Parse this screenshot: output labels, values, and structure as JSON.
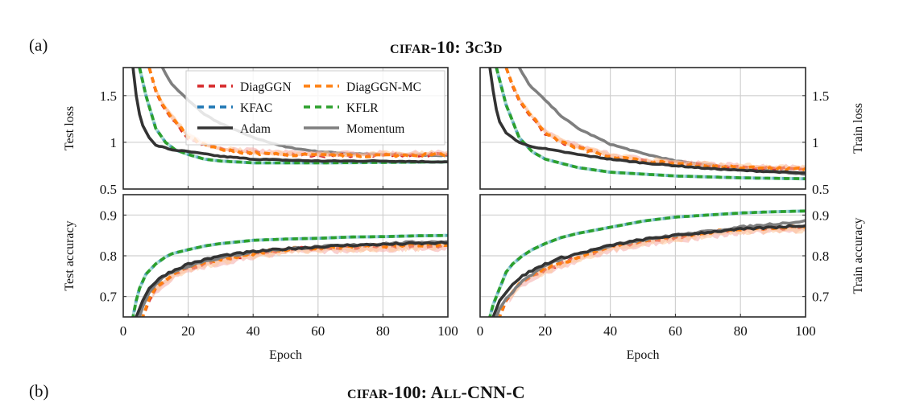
{
  "figure": {
    "panel_a_label": "(a)",
    "panel_b_label": "(b)",
    "title_a": {
      "prefix_sc": "cifar",
      "mid": "-10: 3",
      "c_sc": "c",
      "mid2": "3",
      "d_sc": "d"
    },
    "title_b": {
      "prefix_sc": "cifar",
      "mid": "-100: A",
      "ll_sc": "ll",
      "rest": "-CNN-C"
    }
  },
  "legend": {
    "placement": "top-left panel, upper-right",
    "entries": [
      {
        "name": "DiagGGN",
        "color": "#d62728",
        "style": "dashed"
      },
      {
        "name": "DiagGGN-MC",
        "color": "#ff7f0e",
        "style": "dashed"
      },
      {
        "name": "KFAC",
        "color": "#1f77b4",
        "style": "dashed"
      },
      {
        "name": "KFLR",
        "color": "#2ca02c",
        "style": "dashed"
      },
      {
        "name": "Adam",
        "color": "#333333",
        "style": "solid"
      },
      {
        "name": "Momentum",
        "color": "#7f7f7f",
        "style": "solid"
      }
    ]
  },
  "chart_data": [
    {
      "id": "test-loss",
      "type": "line",
      "title": "",
      "xlabel": "",
      "ylabel": "Test loss",
      "ylabel_side": "left",
      "xlim": [
        0,
        100
      ],
      "ylim": [
        0.5,
        1.8
      ],
      "xticks": [
        0,
        20,
        40,
        60,
        80,
        100
      ],
      "show_xtick_labels": false,
      "yticks": [
        0.5,
        1,
        1.5
      ],
      "ytick_labels": [
        "0.5",
        "1",
        "1.5"
      ],
      "grid": true,
      "series": [
        {
          "name": "Momentum",
          "x": [
            12,
            15,
            20,
            25,
            30,
            40,
            50,
            60,
            70,
            80,
            90,
            100
          ],
          "y": [
            1.8,
            1.62,
            1.45,
            1.3,
            1.2,
            1.05,
            0.95,
            0.9,
            0.88,
            0.87,
            0.865,
            0.86
          ]
        },
        {
          "name": "DiagGGN",
          "x": [
            8,
            10,
            12,
            15,
            20,
            25,
            30,
            40,
            50,
            60,
            70,
            80,
            90,
            100
          ],
          "y": [
            1.8,
            1.55,
            1.4,
            1.25,
            1.05,
            0.97,
            0.92,
            0.89,
            0.87,
            0.86,
            0.86,
            0.865,
            0.865,
            0.87
          ]
        },
        {
          "name": "DiagGGN-MC",
          "x": [
            8,
            10,
            12,
            15,
            20,
            25,
            30,
            40,
            50,
            60,
            70,
            80,
            90,
            100
          ],
          "y": [
            1.8,
            1.56,
            1.41,
            1.26,
            1.06,
            0.97,
            0.92,
            0.88,
            0.865,
            0.86,
            0.855,
            0.86,
            0.865,
            0.87
          ]
        },
        {
          "name": "KFAC",
          "x": [
            5,
            7,
            10,
            13,
            16,
            20,
            25,
            30,
            40,
            50,
            60,
            80,
            100
          ],
          "y": [
            1.8,
            1.5,
            1.15,
            1.0,
            0.92,
            0.87,
            0.82,
            0.8,
            0.78,
            0.78,
            0.78,
            0.785,
            0.79
          ]
        },
        {
          "name": "KFLR",
          "x": [
            5,
            7,
            10,
            13,
            16,
            20,
            25,
            30,
            40,
            50,
            60,
            80,
            100
          ],
          "y": [
            1.8,
            1.5,
            1.15,
            1.0,
            0.92,
            0.87,
            0.82,
            0.8,
            0.78,
            0.78,
            0.78,
            0.785,
            0.79
          ]
        },
        {
          "name": "Adam",
          "x": [
            3,
            4,
            5,
            6,
            8,
            10,
            15,
            20,
            30,
            40,
            50,
            60,
            80,
            100
          ],
          "y": [
            1.8,
            1.5,
            1.3,
            1.18,
            1.05,
            0.97,
            0.92,
            0.9,
            0.85,
            0.82,
            0.81,
            0.8,
            0.8,
            0.79
          ]
        }
      ]
    },
    {
      "id": "train-loss",
      "type": "line",
      "title": "",
      "xlabel": "",
      "ylabel": "Train loss",
      "ylabel_side": "right",
      "xlim": [
        0,
        100
      ],
      "ylim": [
        0.5,
        1.8
      ],
      "xticks": [
        0,
        20,
        40,
        60,
        80,
        100
      ],
      "show_xtick_labels": false,
      "yticks": [
        0.5,
        1,
        1.5
      ],
      "ytick_labels": [
        "0.5",
        "1",
        "1.5"
      ],
      "grid": true,
      "series": [
        {
          "name": "Momentum",
          "x": [
            12,
            15,
            20,
            25,
            30,
            40,
            50,
            60,
            70,
            80,
            90,
            100
          ],
          "y": [
            1.8,
            1.62,
            1.45,
            1.28,
            1.15,
            0.98,
            0.88,
            0.8,
            0.76,
            0.72,
            0.69,
            0.66
          ]
        },
        {
          "name": "DiagGGN",
          "x": [
            8,
            10,
            12,
            15,
            20,
            25,
            30,
            40,
            50,
            60,
            70,
            80,
            90,
            100
          ],
          "y": [
            1.8,
            1.6,
            1.45,
            1.3,
            1.1,
            1.0,
            0.95,
            0.85,
            0.8,
            0.77,
            0.75,
            0.73,
            0.72,
            0.72
          ]
        },
        {
          "name": "DiagGGN-MC",
          "x": [
            8,
            10,
            12,
            15,
            20,
            25,
            30,
            40,
            50,
            60,
            70,
            80,
            90,
            100
          ],
          "y": [
            1.8,
            1.61,
            1.46,
            1.31,
            1.11,
            1.0,
            0.94,
            0.85,
            0.8,
            0.77,
            0.75,
            0.73,
            0.72,
            0.71
          ]
        },
        {
          "name": "KFAC",
          "x": [
            5,
            8,
            12,
            16,
            20,
            30,
            40,
            50,
            60,
            70,
            80,
            90,
            100
          ],
          "y": [
            1.8,
            1.4,
            1.05,
            0.9,
            0.82,
            0.73,
            0.68,
            0.66,
            0.64,
            0.63,
            0.62,
            0.615,
            0.61
          ]
        },
        {
          "name": "KFLR",
          "x": [
            5,
            8,
            12,
            16,
            20,
            30,
            40,
            50,
            60,
            70,
            80,
            90,
            100
          ],
          "y": [
            1.8,
            1.4,
            1.05,
            0.9,
            0.82,
            0.73,
            0.68,
            0.66,
            0.64,
            0.63,
            0.62,
            0.615,
            0.61
          ]
        },
        {
          "name": "Adam",
          "x": [
            3,
            4,
            5,
            6,
            8,
            12,
            15,
            20,
            30,
            40,
            50,
            60,
            70,
            80,
            90,
            100
          ],
          "y": [
            1.8,
            1.55,
            1.35,
            1.22,
            1.1,
            1.0,
            0.96,
            0.93,
            0.87,
            0.82,
            0.78,
            0.75,
            0.72,
            0.7,
            0.685,
            0.67
          ]
        }
      ]
    },
    {
      "id": "test-accuracy",
      "type": "line",
      "title": "",
      "xlabel": "Epoch",
      "ylabel": "Test accuracy",
      "ylabel_side": "left",
      "xlim": [
        0,
        100
      ],
      "ylim": [
        0.65,
        0.95
      ],
      "xticks": [
        0,
        20,
        40,
        60,
        80,
        100
      ],
      "show_xtick_labels": true,
      "xtick_labels": [
        "0",
        "20",
        "40",
        "60",
        "80",
        "100"
      ],
      "yticks": [
        0.7,
        0.8,
        0.9
      ],
      "ytick_labels": [
        "0.7",
        "0.8",
        "0.9"
      ],
      "grid": true,
      "series": [
        {
          "name": "DiagGGN",
          "x": [
            6,
            8,
            10,
            15,
            20,
            30,
            40,
            50,
            60,
            70,
            80,
            90,
            100
          ],
          "y": [
            0.65,
            0.69,
            0.72,
            0.75,
            0.77,
            0.79,
            0.805,
            0.815,
            0.82,
            0.82,
            0.823,
            0.824,
            0.825
          ]
        },
        {
          "name": "DiagGGN-MC",
          "x": [
            6,
            8,
            10,
            15,
            20,
            30,
            40,
            50,
            60,
            70,
            80,
            90,
            100
          ],
          "y": [
            0.65,
            0.695,
            0.722,
            0.752,
            0.772,
            0.792,
            0.806,
            0.816,
            0.821,
            0.822,
            0.825,
            0.826,
            0.828
          ]
        },
        {
          "name": "KFAC",
          "x": [
            3,
            4,
            5,
            7,
            10,
            13,
            15,
            20,
            25,
            30,
            40,
            50,
            60,
            70,
            80,
            90,
            100
          ],
          "y": [
            0.65,
            0.69,
            0.72,
            0.755,
            0.78,
            0.797,
            0.805,
            0.815,
            0.824,
            0.83,
            0.838,
            0.841,
            0.843,
            0.846,
            0.847,
            0.849,
            0.85
          ]
        },
        {
          "name": "KFLR",
          "x": [
            3,
            4,
            5,
            7,
            10,
            13,
            15,
            20,
            25,
            30,
            40,
            50,
            60,
            70,
            80,
            90,
            100
          ],
          "y": [
            0.65,
            0.69,
            0.72,
            0.755,
            0.78,
            0.797,
            0.805,
            0.815,
            0.824,
            0.83,
            0.838,
            0.841,
            0.843,
            0.846,
            0.847,
            0.849,
            0.85
          ]
        },
        {
          "name": "Momentum",
          "x": [
            5,
            6,
            8,
            10,
            12,
            15,
            20,
            25,
            30,
            40,
            50,
            60,
            70,
            80,
            90,
            100
          ],
          "y": [
            0.65,
            0.675,
            0.71,
            0.73,
            0.745,
            0.76,
            0.775,
            0.787,
            0.795,
            0.81,
            0.817,
            0.822,
            0.826,
            0.83,
            0.833,
            0.835
          ]
        },
        {
          "name": "Adam",
          "x": [
            4,
            5,
            6,
            8,
            10,
            12,
            15,
            20,
            25,
            30,
            40,
            50,
            60,
            70,
            80,
            90,
            100
          ],
          "y": [
            0.65,
            0.67,
            0.69,
            0.72,
            0.735,
            0.75,
            0.762,
            0.78,
            0.79,
            0.8,
            0.81,
            0.817,
            0.822,
            0.826,
            0.828,
            0.83,
            0.832
          ]
        }
      ]
    },
    {
      "id": "train-accuracy",
      "type": "line",
      "title": "",
      "xlabel": "Epoch",
      "ylabel": "Train accuracy",
      "ylabel_side": "right",
      "xlim": [
        0,
        100
      ],
      "ylim": [
        0.65,
        0.95
      ],
      "xticks": [
        0,
        20,
        40,
        60,
        80,
        100
      ],
      "show_xtick_labels": true,
      "xtick_labels": [
        "0",
        "20",
        "40",
        "60",
        "80",
        "100"
      ],
      "yticks": [
        0.7,
        0.8,
        0.9
      ],
      "ytick_labels": [
        "0.7",
        "0.8",
        "0.9"
      ],
      "grid": true,
      "series": [
        {
          "name": "DiagGGN",
          "x": [
            6,
            8,
            10,
            12,
            15,
            20,
            30,
            40,
            50,
            60,
            70,
            80,
            90,
            100
          ],
          "y": [
            0.65,
            0.69,
            0.71,
            0.73,
            0.745,
            0.765,
            0.795,
            0.82,
            0.835,
            0.845,
            0.855,
            0.865,
            0.868,
            0.87
          ]
        },
        {
          "name": "DiagGGN-MC",
          "x": [
            6,
            8,
            10,
            12,
            15,
            20,
            30,
            40,
            50,
            60,
            70,
            80,
            90,
            100
          ],
          "y": [
            0.65,
            0.692,
            0.712,
            0.732,
            0.748,
            0.768,
            0.797,
            0.822,
            0.837,
            0.847,
            0.857,
            0.866,
            0.869,
            0.871
          ]
        },
        {
          "name": "KFAC",
          "x": [
            3,
            4,
            6,
            8,
            10,
            13,
            16,
            20,
            25,
            30,
            40,
            50,
            60,
            70,
            80,
            90,
            100
          ],
          "y": [
            0.65,
            0.68,
            0.72,
            0.76,
            0.78,
            0.8,
            0.815,
            0.83,
            0.845,
            0.855,
            0.87,
            0.885,
            0.895,
            0.9,
            0.905,
            0.908,
            0.91
          ]
        },
        {
          "name": "KFLR",
          "x": [
            3,
            4,
            6,
            8,
            10,
            13,
            16,
            20,
            25,
            30,
            40,
            50,
            60,
            70,
            80,
            90,
            100
          ],
          "y": [
            0.65,
            0.68,
            0.72,
            0.76,
            0.78,
            0.8,
            0.815,
            0.83,
            0.845,
            0.855,
            0.87,
            0.885,
            0.895,
            0.9,
            0.905,
            0.908,
            0.91
          ]
        },
        {
          "name": "Momentum",
          "x": [
            5,
            6,
            8,
            10,
            12,
            15,
            20,
            25,
            30,
            40,
            50,
            60,
            70,
            80,
            90,
            100
          ],
          "y": [
            0.65,
            0.67,
            0.695,
            0.71,
            0.73,
            0.75,
            0.775,
            0.793,
            0.805,
            0.825,
            0.84,
            0.85,
            0.86,
            0.87,
            0.878,
            0.885
          ]
        },
        {
          "name": "Adam",
          "x": [
            4,
            5,
            6,
            8,
            10,
            12,
            15,
            20,
            25,
            30,
            40,
            50,
            60,
            70,
            80,
            90,
            100
          ],
          "y": [
            0.65,
            0.67,
            0.69,
            0.71,
            0.73,
            0.745,
            0.76,
            0.78,
            0.795,
            0.805,
            0.825,
            0.84,
            0.85,
            0.858,
            0.865,
            0.87,
            0.875
          ]
        }
      ]
    }
  ]
}
